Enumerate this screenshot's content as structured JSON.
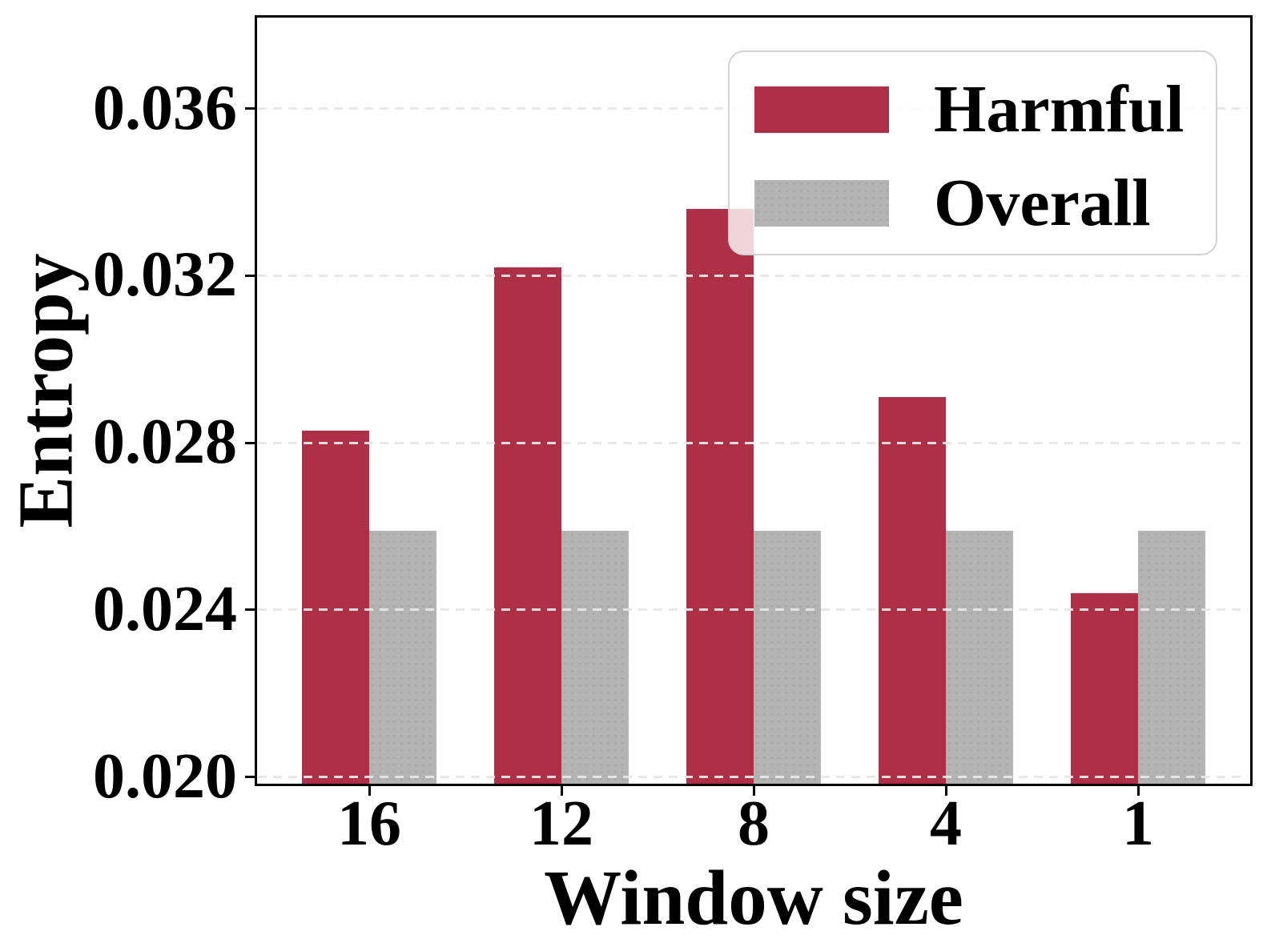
{
  "chart_data": {
    "type": "bar",
    "categories": [
      "16",
      "12",
      "8",
      "4",
      "1"
    ],
    "series": [
      {
        "name": "Harmful",
        "color": "#AE3047",
        "values": [
          0.0283,
          0.0322,
          0.0336,
          0.0291,
          0.0244
        ]
      },
      {
        "name": "Overall",
        "color": "#B3B3B3",
        "values": [
          0.0259,
          0.0259,
          0.0259,
          0.0259,
          0.0259
        ]
      }
    ],
    "xlabel": "Window size",
    "ylabel": "Entropy",
    "ylim": [
      0.0198,
      0.0382
    ],
    "ytick_labels": [
      "0.020",
      "0.024",
      "0.028",
      "0.032",
      "0.036"
    ],
    "ytick_values": [
      0.02,
      0.024,
      0.028,
      0.032,
      0.036
    ],
    "grid": "horizontal-dashed",
    "grid_color": "#E7E7E7",
    "legend_position": "top-right",
    "legend_entries": [
      "Harmful",
      "Overall"
    ]
  }
}
